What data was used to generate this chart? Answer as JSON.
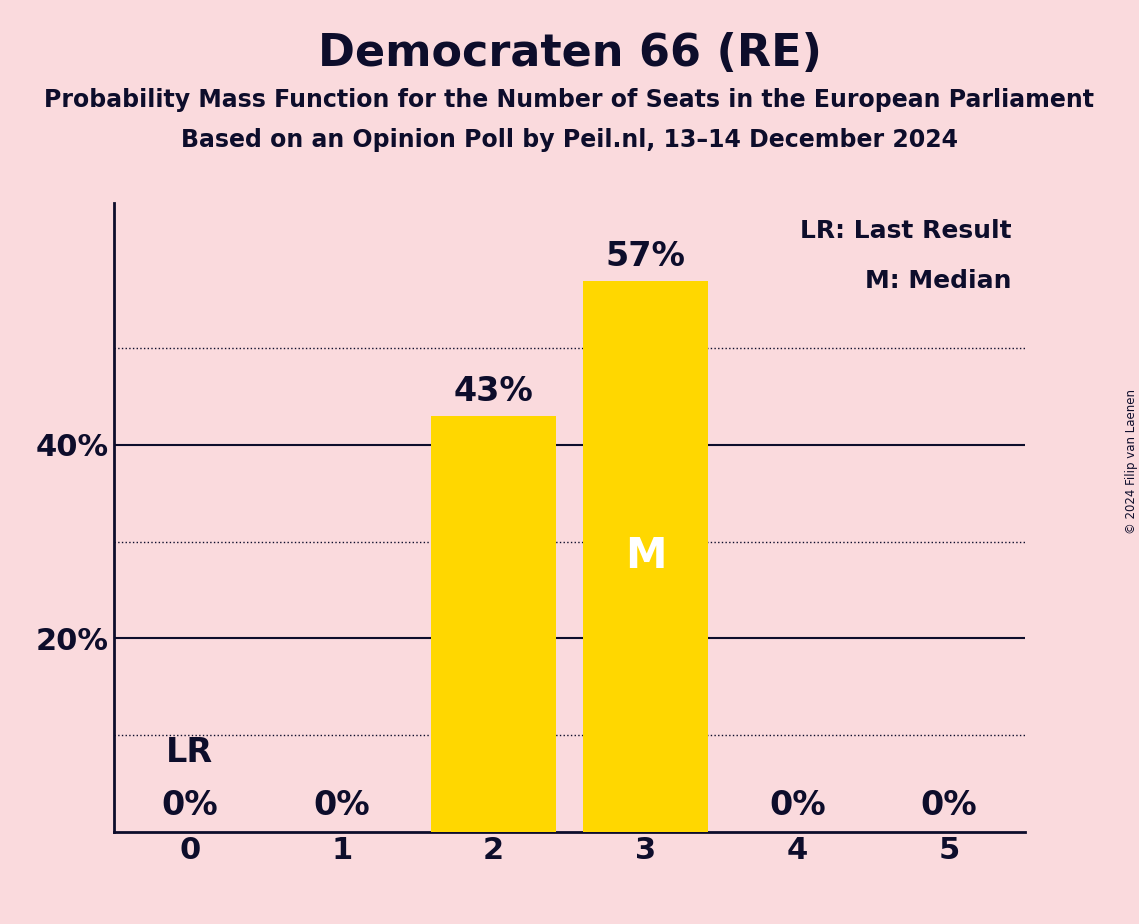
{
  "title": "Democraten 66 (RE)",
  "subtitle1": "Probability Mass Function for the Number of Seats in the European Parliament",
  "subtitle2": "Based on an Opinion Poll by Peil.nl, 13–14 December 2024",
  "copyright": "© 2024 Filip van Laenen",
  "categories": [
    0,
    1,
    2,
    3,
    4,
    5
  ],
  "values": [
    0,
    0,
    43,
    57,
    0,
    0
  ],
  "bar_color": "#FFD700",
  "background_color": "#FADADD",
  "last_result_seat": 0,
  "median_seat": 3,
  "solid_lines": [
    20,
    40
  ],
  "dotted_lines": [
    10,
    30,
    50
  ],
  "ylim": [
    0,
    65
  ],
  "legend_text1": "LR: Last Result",
  "legend_text2": "M: Median",
  "title_fontsize": 32,
  "subtitle_fontsize": 17,
  "tick_label_fontsize": 22,
  "bar_label_fontsize": 24,
  "legend_fontsize": 18,
  "text_color": "#0d0d2b",
  "bar_width": 0.82
}
